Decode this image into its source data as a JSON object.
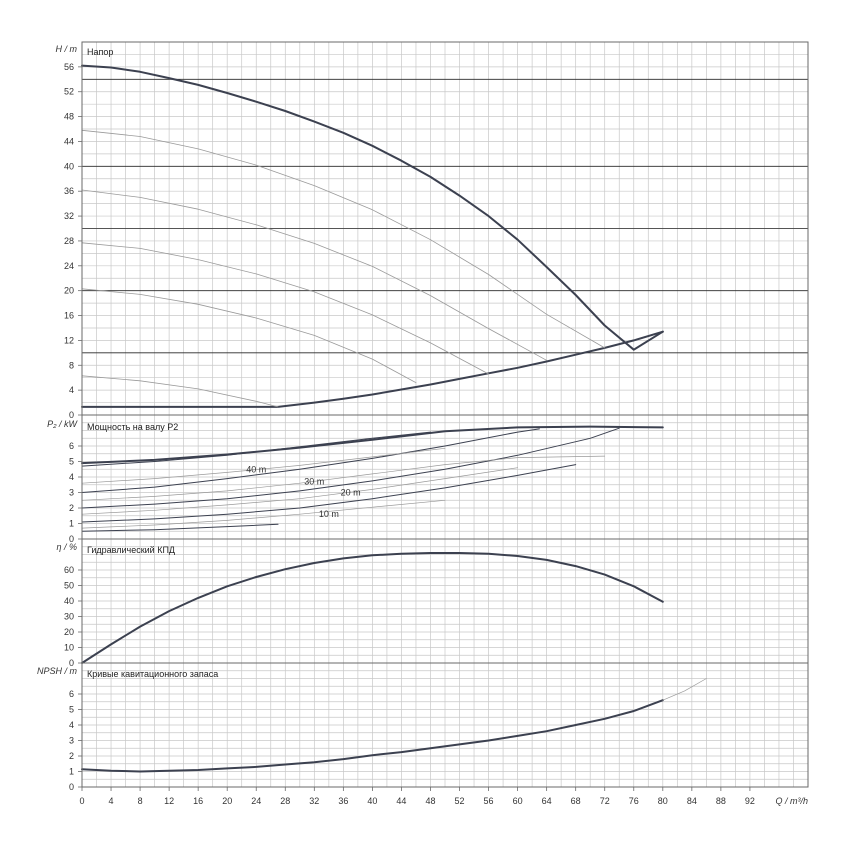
{
  "colors": {
    "grid": "#c8c8c8",
    "frame": "#6a6a6a",
    "main_curve": "#3c4150",
    "thin_curve": "#9a9a9a",
    "ref_line": "#2a2a2a",
    "background": "#ffffff"
  },
  "chart_data": [
    {
      "id": "head",
      "type": "line",
      "title": "Напор",
      "ylabel": "H / m",
      "xlim": [
        0,
        100
      ],
      "ylim": [
        0,
        60
      ],
      "yticks": [
        0,
        4,
        8,
        12,
        16,
        20,
        24,
        28,
        32,
        36,
        40,
        44,
        48,
        52,
        56
      ],
      "reference_lines": [
        54,
        40,
        30,
        20,
        10
      ],
      "series": [
        {
          "role": "max-curve",
          "x": [
            0,
            4,
            8,
            12,
            16,
            20,
            24,
            28,
            32,
            36,
            40,
            44,
            48,
            52,
            56,
            60,
            64,
            68,
            72,
            76,
            80
          ],
          "y": [
            56.2,
            55.9,
            55.2,
            54.2,
            53.1,
            51.8,
            50.4,
            48.9,
            47.2,
            45.4,
            43.3,
            40.9,
            38.3,
            35.3,
            32.0,
            28.2,
            23.8,
            19.3,
            14.4,
            10.5,
            13.4
          ]
        },
        {
          "role": "min-curve",
          "x": [
            0,
            27,
            32,
            36,
            40,
            44,
            48,
            52,
            56,
            60,
            64,
            68,
            72,
            76,
            80
          ],
          "y": [
            1.3,
            1.3,
            2.0,
            2.6,
            3.3,
            4.1,
            4.9,
            5.8,
            6.7,
            7.6,
            8.6,
            9.7,
            10.8,
            12.0,
            13.4
          ]
        },
        {
          "role": "speed-curve",
          "x": [
            0,
            8,
            16,
            24,
            32,
            40,
            48,
            56,
            64,
            72
          ],
          "y": [
            45.8,
            44.8,
            42.8,
            40.2,
            36.9,
            33.0,
            28.2,
            22.6,
            16.2,
            10.8
          ]
        },
        {
          "role": "speed-curve",
          "x": [
            0,
            8,
            16,
            24,
            32,
            40,
            48,
            56,
            64
          ],
          "y": [
            36.2,
            35.0,
            33.1,
            30.6,
            27.6,
            23.9,
            19.2,
            13.9,
            8.8
          ]
        },
        {
          "role": "speed-curve",
          "x": [
            0,
            8,
            16,
            24,
            32,
            40,
            48,
            56
          ],
          "y": [
            27.7,
            26.8,
            25.0,
            22.7,
            19.8,
            16.1,
            11.6,
            6.6
          ]
        },
        {
          "role": "speed-curve",
          "x": [
            0,
            8,
            16,
            24,
            32,
            40,
            46
          ],
          "y": [
            20.3,
            19.4,
            17.8,
            15.6,
            12.8,
            9.0,
            5.2
          ]
        },
        {
          "role": "speed-curve",
          "x": [
            0,
            8,
            16,
            24,
            27
          ],
          "y": [
            6.3,
            5.5,
            4.2,
            2.2,
            1.3
          ]
        }
      ]
    },
    {
      "id": "power",
      "type": "line",
      "title": "Мощность на валу P2",
      "ylabel": "P₂ / kW",
      "xlim": [
        0,
        100
      ],
      "ylim": [
        0,
        8
      ],
      "yticks": [
        0,
        1,
        2,
        3,
        4,
        5,
        6
      ],
      "annotations": [
        {
          "text": "40 m",
          "x": 24,
          "y": 4.5
        },
        {
          "text": "30 m",
          "x": 32,
          "y": 3.7
        },
        {
          "text": "20 m",
          "x": 37,
          "y": 3.0
        },
        {
          "text": "10 m",
          "x": 34,
          "y": 1.6
        }
      ],
      "series": [
        {
          "role": "max-curve",
          "x": [
            0,
            10,
            20,
            30,
            40,
            50,
            60,
            70,
            80
          ],
          "y": [
            4.9,
            5.1,
            5.45,
            5.9,
            6.4,
            6.95,
            7.2,
            7.25,
            7.2
          ]
        },
        {
          "role": "dark-curve",
          "x": [
            0,
            10,
            20,
            30,
            40,
            48
          ],
          "y": [
            4.7,
            5.0,
            5.4,
            5.95,
            6.5,
            6.9
          ]
        },
        {
          "role": "dark-curve",
          "x": [
            0,
            10,
            20,
            30,
            40,
            50,
            60,
            63
          ],
          "y": [
            3.0,
            3.35,
            3.9,
            4.5,
            5.2,
            6.0,
            6.9,
            7.1
          ]
        },
        {
          "role": "dark-curve",
          "x": [
            0,
            10,
            20,
            30,
            40,
            50,
            60,
            70,
            74
          ],
          "y": [
            2.0,
            2.25,
            2.6,
            3.1,
            3.75,
            4.5,
            5.4,
            6.5,
            7.15
          ]
        },
        {
          "role": "dark-curve",
          "x": [
            0,
            10,
            20,
            30,
            40,
            50,
            60,
            68
          ],
          "y": [
            1.1,
            1.3,
            1.6,
            2.0,
            2.6,
            3.3,
            4.1,
            4.8
          ]
        },
        {
          "role": "dark-curve",
          "x": [
            0,
            10,
            20,
            27
          ],
          "y": [
            0.5,
            0.6,
            0.8,
            0.95
          ]
        },
        {
          "role": "light-curve",
          "x": [
            0,
            10,
            20,
            30,
            40,
            50
          ],
          "y": [
            3.6,
            3.9,
            4.3,
            4.75,
            5.3,
            5.85
          ]
        },
        {
          "role": "light-curve",
          "x": [
            0,
            10,
            20,
            30,
            40,
            50,
            60,
            72
          ],
          "y": [
            2.5,
            2.75,
            3.1,
            3.6,
            4.2,
            4.8,
            5.25,
            5.35
          ]
        },
        {
          "role": "light-curve",
          "x": [
            0,
            10,
            20,
            30,
            40,
            50,
            60
          ],
          "y": [
            1.6,
            1.85,
            2.2,
            2.6,
            3.2,
            3.9,
            4.6
          ]
        },
        {
          "role": "light-curve",
          "x": [
            0,
            10,
            20,
            30,
            40,
            50
          ],
          "y": [
            0.7,
            0.9,
            1.2,
            1.6,
            2.05,
            2.5
          ]
        }
      ]
    },
    {
      "id": "efficiency",
      "type": "line",
      "title": "Гидравлический КПД",
      "ylabel": "η / %",
      "xlim": [
        0,
        100
      ],
      "ylim": [
        0,
        80
      ],
      "yticks": [
        0,
        10,
        20,
        30,
        40,
        50,
        60
      ],
      "series": [
        {
          "role": "max-curve",
          "x": [
            0,
            4,
            8,
            12,
            16,
            20,
            24,
            28,
            32,
            36,
            40,
            44,
            48,
            52,
            56,
            60,
            64,
            68,
            72,
            76,
            80
          ],
          "y": [
            0,
            12,
            23.5,
            33.5,
            42,
            49.5,
            55.5,
            60.5,
            64.5,
            67.5,
            69.5,
            70.5,
            71,
            71,
            70.5,
            69,
            66.5,
            62.5,
            57,
            49.5,
            39.5
          ]
        }
      ]
    },
    {
      "id": "npsh",
      "type": "line",
      "title": "Кривые кавитационного запаса",
      "ylabel": "NPSH / m",
      "xlabel": "Q / m³/h",
      "xlim": [
        0,
        100
      ],
      "ylim": [
        0,
        8
      ],
      "yticks": [
        0,
        1,
        2,
        3,
        4,
        5,
        6
      ],
      "xticks": [
        0,
        4,
        8,
        12,
        16,
        20,
        24,
        28,
        32,
        36,
        40,
        44,
        48,
        52,
        56,
        60,
        64,
        68,
        72,
        76,
        80,
        84,
        88,
        92
      ],
      "series": [
        {
          "role": "max-curve",
          "x": [
            0,
            4,
            8,
            12,
            16,
            20,
            24,
            28,
            32,
            36,
            40,
            44,
            48,
            52,
            56,
            60,
            64,
            68,
            72,
            76,
            80
          ],
          "y": [
            1.15,
            1.05,
            1.0,
            1.05,
            1.1,
            1.2,
            1.3,
            1.45,
            1.6,
            1.8,
            2.05,
            2.25,
            2.5,
            2.75,
            3.0,
            3.3,
            3.6,
            4.0,
            4.4,
            4.9,
            5.6
          ]
        },
        {
          "role": "light-curve",
          "x": [
            80,
            83,
            86
          ],
          "y": [
            5.6,
            6.2,
            7.0
          ]
        }
      ]
    }
  ]
}
